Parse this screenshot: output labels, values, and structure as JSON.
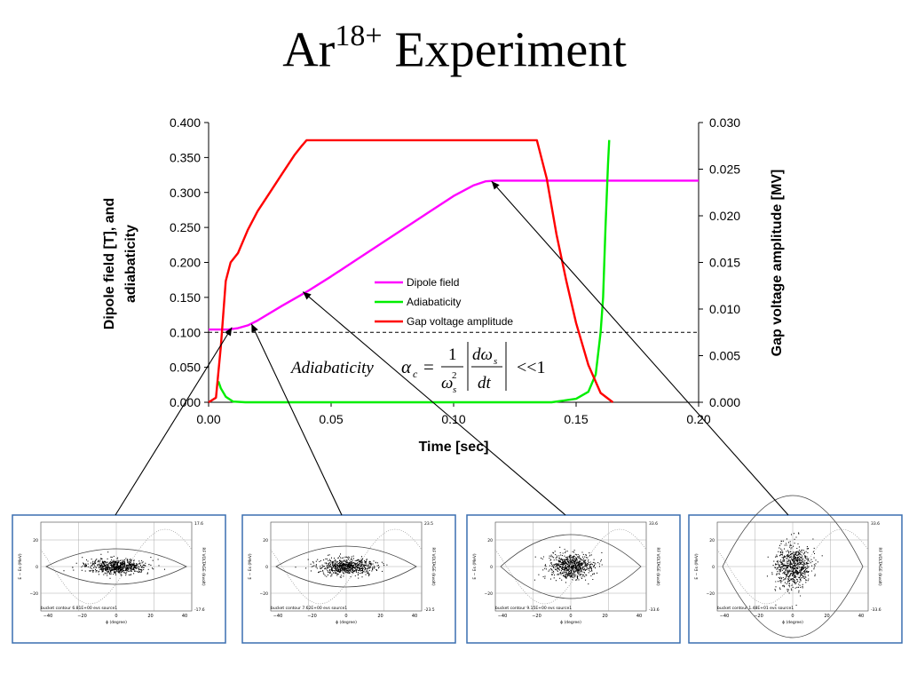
{
  "slide": {
    "title_main": "Ar",
    "title_sup": "18+",
    "title_rest": " Experiment"
  },
  "chart_data": {
    "type": "line",
    "xlabel": "Time [sec]",
    "ylabel_left_line1": "Dipole field [T], and",
    "ylabel_left_line2": "adiabaticity",
    "ylabel_right": "Gap voltage amplitude [MV]",
    "xlim": [
      0,
      0.2
    ],
    "ylim_left": [
      0,
      0.4
    ],
    "ylim_right": [
      0,
      0.03
    ],
    "x_ticks": [
      "0.00",
      "0.05",
      "0.10",
      "0.15",
      "0.20"
    ],
    "y_left_ticks": [
      "0.000",
      "0.050",
      "0.100",
      "0.150",
      "0.200",
      "0.250",
      "0.300",
      "0.350",
      "0.400"
    ],
    "y_right_ticks": [
      "0.000",
      "0.005",
      "0.010",
      "0.015",
      "0.020",
      "0.025",
      "0.030"
    ],
    "grid": false,
    "legend_position": "center",
    "reference_line_y": 0.1,
    "series": [
      {
        "name": "Dipole field",
        "axis": "left",
        "color": "#ff00ff",
        "x": [
          0,
          0.008,
          0.012,
          0.016,
          0.02,
          0.03,
          0.04,
          0.05,
          0.06,
          0.07,
          0.08,
          0.09,
          0.1,
          0.108,
          0.113,
          0.117,
          0.12,
          0.15,
          0.2
        ],
        "y": [
          0.104,
          0.104,
          0.106,
          0.11,
          0.117,
          0.138,
          0.158,
          0.18,
          0.203,
          0.226,
          0.249,
          0.272,
          0.295,
          0.31,
          0.316,
          0.317,
          0.317,
          0.317,
          0.317
        ]
      },
      {
        "name": "Adiabaticity",
        "axis": "left",
        "color": "#00ee00",
        "x": [
          0.004,
          0.005,
          0.007,
          0.01,
          0.015,
          0.05,
          0.1,
          0.14,
          0.15,
          0.155,
          0.158,
          0.16,
          0.161,
          0.162,
          0.163,
          0.1635
        ],
        "y": [
          0.03,
          0.02,
          0.008,
          0.001,
          0.0,
          0.0,
          0.0,
          0.0,
          0.005,
          0.015,
          0.04,
          0.1,
          0.15,
          0.25,
          0.34,
          0.375
        ]
      },
      {
        "name": "Gap voltage amplitude",
        "axis": "right",
        "color": "#ff0000",
        "x": [
          0,
          0.003,
          0.005,
          0.007,
          0.009,
          0.012,
          0.016,
          0.02,
          0.025,
          0.03,
          0.035,
          0.038,
          0.04,
          0.08,
          0.12,
          0.134,
          0.138,
          0.142,
          0.146,
          0.15,
          0.155,
          0.16,
          0.165
        ],
        "y": [
          0,
          0.0005,
          0.006,
          0.013,
          0.015,
          0.016,
          0.0185,
          0.0205,
          0.0225,
          0.0245,
          0.0265,
          0.0275,
          0.0281,
          0.0281,
          0.0281,
          0.0281,
          0.024,
          0.018,
          0.013,
          0.0085,
          0.004,
          0.001,
          0.0
        ]
      }
    ],
    "equation": {
      "label": "Adiabaticity",
      "alpha": "α",
      "sub_c": "c",
      "eq": "=",
      "num": "1",
      "den": "ω",
      "den_sub": "s",
      "den_sup": "2",
      "d_num": "dω",
      "d_num_sub": "s",
      "d_den": "dt",
      "rel": "<<1"
    },
    "callouts": [
      {
        "target_x": 0.0095,
        "target_y": 0.107,
        "thumb": 0
      },
      {
        "target_x": 0.0175,
        "target_y": 0.112,
        "thumb": 1
      },
      {
        "target_x": 0.0385,
        "target_y": 0.158,
        "thumb": 2
      },
      {
        "target_x": 0.1155,
        "target_y": 0.316,
        "thumb": 3
      }
    ]
  },
  "thumbnails": [
    {
      "max_label": "17.6",
      "min_label": "-17.6",
      "footer": "bucket contour 6.81E+00 evs source1",
      "bucket_half_height": 0.2,
      "bunch_rx": 38,
      "bunch_ry": 9
    },
    {
      "max_label": "23.5",
      "min_label": "-23.5",
      "footer": "bucket contour 7.62E+00 evs source1",
      "bucket_half_height": 0.23,
      "bunch_rx": 34,
      "bunch_ry": 10
    },
    {
      "max_label": "33.6",
      "min_label": "-33.6",
      "footer": "bucket contour 9.15E+00 evs source1",
      "bucket_half_height": 0.36,
      "bunch_rx": 27,
      "bunch_ry": 16
    },
    {
      "max_label": "33.6",
      "min_label": "-33.6",
      "footer": "bucket contour 1.48E+01 evs source1",
      "bucket_half_height": 0.8,
      "bunch_rx": 22,
      "bunch_ry": 27
    }
  ],
  "thumb_axis": {
    "x_ticks": [
      "−40",
      "−20",
      "0",
      "20",
      "40"
    ],
    "x_label": "ϕ (degree)",
    "y_label": "E − Es (MeV)",
    "y_right_label": "RF VOLTAGE (kvolt)",
    "y_ticks": [
      "20",
      "0",
      "−20"
    ]
  }
}
